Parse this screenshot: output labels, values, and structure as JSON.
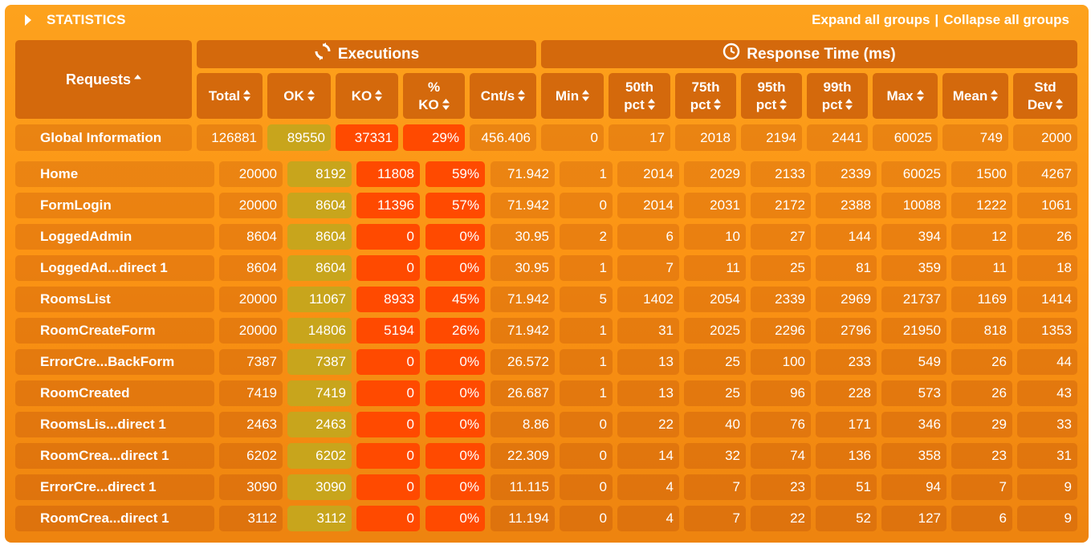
{
  "section": {
    "title": "STATISTICS",
    "expand_all": "Expand all groups",
    "separator": "|",
    "collapse_all": "Collapse all groups"
  },
  "headers": {
    "requests": "Requests",
    "executions": "Executions",
    "response_time": "Response Time (ms)",
    "total": "Total",
    "ok": "OK",
    "ko": "KO",
    "pct_ko": [
      "%",
      "KO"
    ],
    "cnt_s": "Cnt/s",
    "min": "Min",
    "p50": [
      "50th",
      "pct"
    ],
    "p75": [
      "75th",
      "pct"
    ],
    "p95": [
      "95th",
      "pct"
    ],
    "p99": [
      "99th",
      "pct"
    ],
    "max": "Max",
    "mean": "Mean",
    "std": [
      "Std",
      "Dev"
    ]
  },
  "global": {
    "name": "Global Information",
    "values": [
      "126881",
      "89550",
      "37331",
      "29%",
      "456.406",
      "0",
      "17",
      "2018",
      "2194",
      "2441",
      "60025",
      "749",
      "2000"
    ]
  },
  "rows": [
    {
      "name": "Home",
      "values": [
        "20000",
        "8192",
        "11808",
        "59%",
        "71.942",
        "1",
        "2014",
        "2029",
        "2133",
        "2339",
        "60025",
        "1500",
        "4267"
      ]
    },
    {
      "name": "FormLogin",
      "values": [
        "20000",
        "8604",
        "11396",
        "57%",
        "71.942",
        "0",
        "2014",
        "2031",
        "2172",
        "2388",
        "10088",
        "1222",
        "1061"
      ]
    },
    {
      "name": "LoggedAdmin",
      "values": [
        "8604",
        "8604",
        "0",
        "0%",
        "30.95",
        "2",
        "6",
        "10",
        "27",
        "144",
        "394",
        "12",
        "26"
      ]
    },
    {
      "name": "LoggedAd...direct 1",
      "values": [
        "8604",
        "8604",
        "0",
        "0%",
        "30.95",
        "1",
        "7",
        "11",
        "25",
        "81",
        "359",
        "11",
        "18"
      ]
    },
    {
      "name": "RoomsList",
      "values": [
        "20000",
        "11067",
        "8933",
        "45%",
        "71.942",
        "5",
        "1402",
        "2054",
        "2339",
        "2969",
        "21737",
        "1169",
        "1414"
      ]
    },
    {
      "name": "RoomCreateForm",
      "values": [
        "20000",
        "14806",
        "5194",
        "26%",
        "71.942",
        "1",
        "31",
        "2025",
        "2296",
        "2796",
        "21950",
        "818",
        "1353"
      ]
    },
    {
      "name": "ErrorCre...BackForm",
      "values": [
        "7387",
        "7387",
        "0",
        "0%",
        "26.572",
        "1",
        "13",
        "25",
        "100",
        "233",
        "549",
        "26",
        "44"
      ]
    },
    {
      "name": "RoomCreated",
      "values": [
        "7419",
        "7419",
        "0",
        "0%",
        "26.687",
        "1",
        "13",
        "25",
        "96",
        "228",
        "573",
        "26",
        "43"
      ]
    },
    {
      "name": "RoomsLis...direct 1",
      "values": [
        "2463",
        "2463",
        "0",
        "0%",
        "8.86",
        "0",
        "22",
        "40",
        "76",
        "171",
        "346",
        "29",
        "33"
      ]
    },
    {
      "name": "RoomCrea...direct 1",
      "values": [
        "6202",
        "6202",
        "0",
        "0%",
        "22.309",
        "0",
        "14",
        "32",
        "74",
        "136",
        "358",
        "23",
        "31"
      ]
    },
    {
      "name": "ErrorCre...direct 1",
      "values": [
        "3090",
        "3090",
        "0",
        "0%",
        "11.115",
        "0",
        "4",
        "7",
        "23",
        "51",
        "94",
        "7",
        "9"
      ]
    },
    {
      "name": "RoomCrea...direct 1",
      "values": [
        "3112",
        "3112",
        "0",
        "0%",
        "11.194",
        "0",
        "4",
        "7",
        "22",
        "52",
        "127",
        "6",
        "9"
      ]
    }
  ],
  "colors": {
    "ok": "#c8a51c",
    "ko": "#ff4a00",
    "header": "#d4690c"
  },
  "icons": {
    "executions": "refresh-icon",
    "response_time": "clock-icon",
    "sort": "sort-arrows-icon",
    "section": "expand-triangle-icon"
  }
}
